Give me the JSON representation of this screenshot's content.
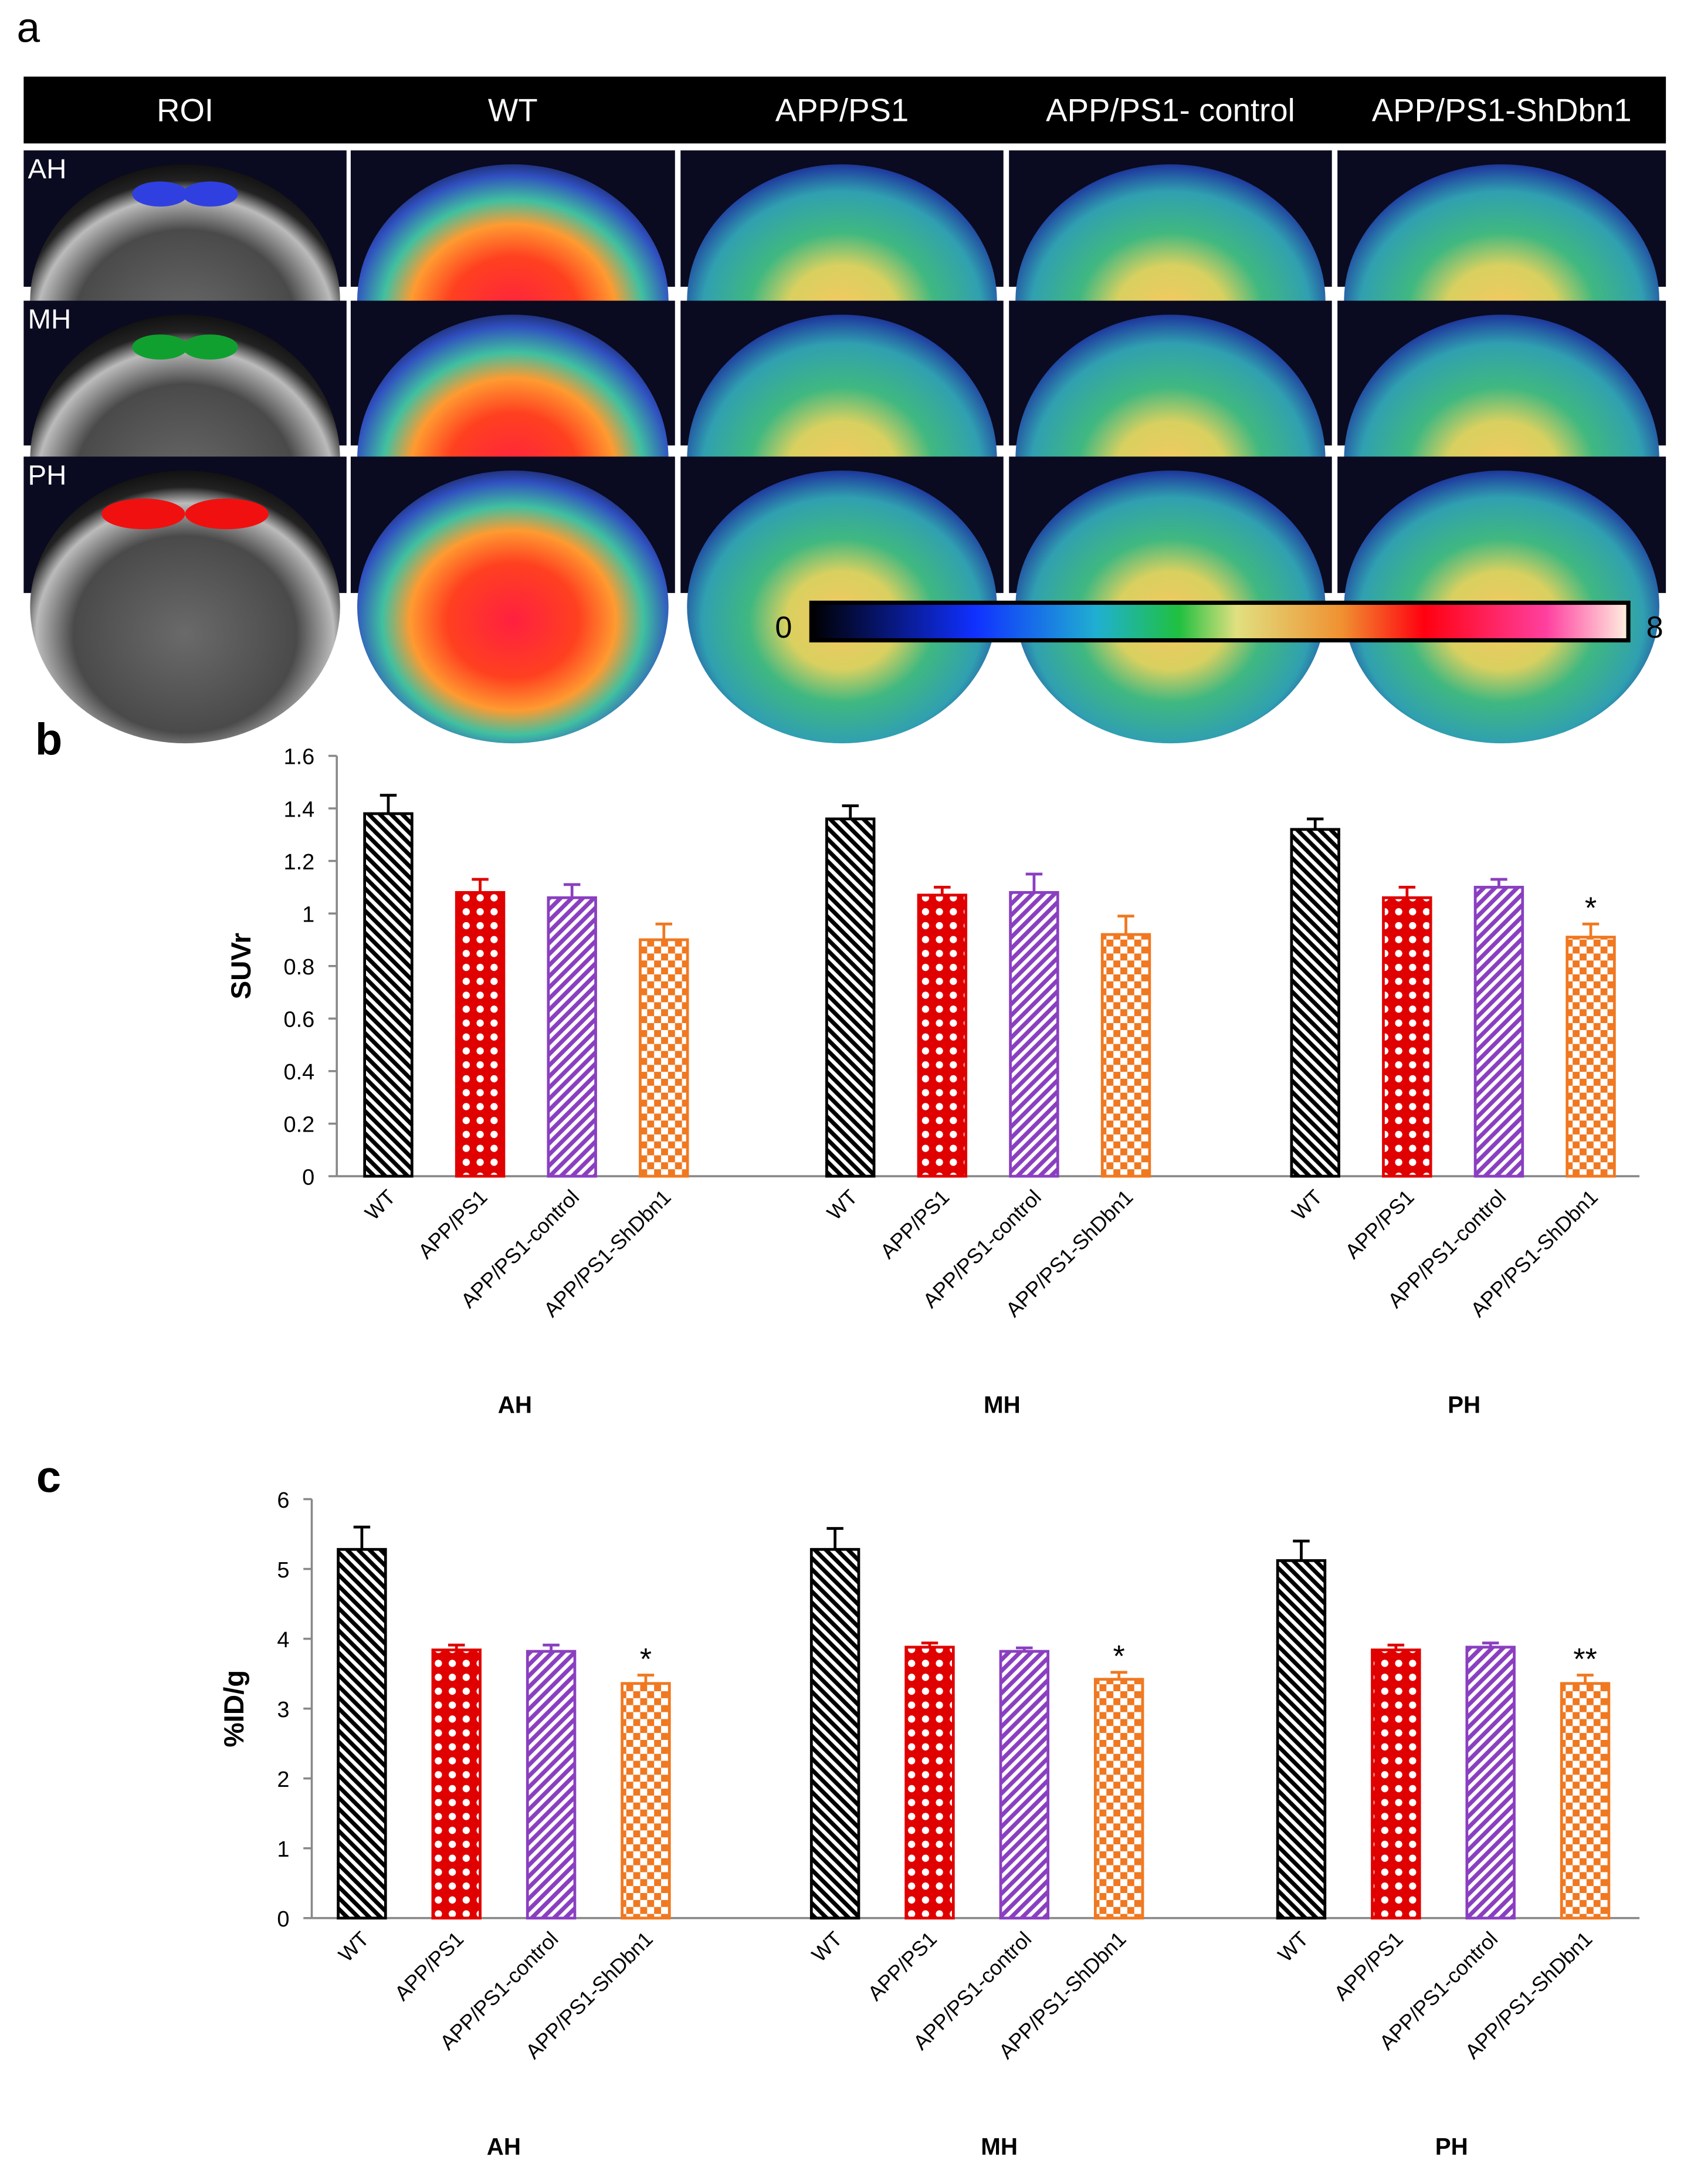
{
  "image_panel": {
    "label": "a",
    "columns": [
      "ROI",
      "WT",
      "APP/PS1",
      "APP/PS1- control",
      "APP/PS1-ShDbn1"
    ],
    "rows": [
      "AH",
      "MH",
      "PH"
    ],
    "colorbar": {
      "min": 0,
      "max": 8
    }
  },
  "chart_data": [
    {
      "type": "bar",
      "panel_label": "b",
      "ylabel": "SUVr",
      "categories": [
        "AH",
        "MH",
        "PH"
      ],
      "ylim": [
        0,
        1.6
      ],
      "yticks": [
        0,
        0.2,
        0.4,
        0.6,
        0.8,
        1,
        1.2,
        1.4,
        1.6
      ],
      "series": [
        {
          "name": "WT",
          "color": "#000000",
          "pattern": "diagonal-back",
          "values": [
            1.38,
            1.36,
            1.32
          ],
          "errors": [
            0.07,
            0.05,
            0.04
          ],
          "significance": [
            null,
            null,
            null
          ]
        },
        {
          "name": "APP/PS1",
          "color": "#e00000",
          "pattern": "dots",
          "values": [
            1.08,
            1.07,
            1.06
          ],
          "errors": [
            0.05,
            0.03,
            0.04
          ],
          "significance": [
            null,
            null,
            null
          ]
        },
        {
          "name": "APP/PS1-control",
          "color": "#8a3fc0",
          "pattern": "diagonal-forward",
          "values": [
            1.06,
            1.08,
            1.1
          ],
          "errors": [
            0.05,
            0.07,
            0.03
          ],
          "significance": [
            null,
            null,
            null
          ]
        },
        {
          "name": "APP/PS1-ShDbn1",
          "color": "#f07820",
          "pattern": "checker",
          "values": [
            0.9,
            0.92,
            0.91
          ],
          "errors": [
            0.06,
            0.07,
            0.05
          ],
          "significance": [
            null,
            null,
            "*"
          ]
        }
      ]
    },
    {
      "type": "bar",
      "panel_label": "c",
      "ylabel": "%ID/g",
      "categories": [
        "AH",
        "MH",
        "PH"
      ],
      "ylim": [
        0,
        6
      ],
      "yticks": [
        0,
        1,
        2,
        3,
        4,
        5,
        6
      ],
      "series": [
        {
          "name": "WT",
          "color": "#000000",
          "pattern": "diagonal-back",
          "values": [
            5.28,
            5.28,
            5.12
          ],
          "errors": [
            0.32,
            0.3,
            0.28
          ],
          "significance": [
            null,
            null,
            null
          ]
        },
        {
          "name": "APP/PS1",
          "color": "#e00000",
          "pattern": "dots",
          "values": [
            3.84,
            3.88,
            3.84
          ],
          "errors": [
            0.07,
            0.06,
            0.07
          ],
          "significance": [
            null,
            null,
            null
          ]
        },
        {
          "name": "APP/PS1-control",
          "color": "#8a3fc0",
          "pattern": "diagonal-forward",
          "values": [
            3.82,
            3.82,
            3.88
          ],
          "errors": [
            0.09,
            0.05,
            0.06
          ],
          "significance": [
            null,
            null,
            null
          ]
        },
        {
          "name": "APP/PS1-ShDbn1",
          "color": "#f07820",
          "pattern": "checker",
          "values": [
            3.36,
            3.42,
            3.36
          ],
          "errors": [
            0.12,
            0.1,
            0.12
          ],
          "significance": [
            "*",
            "*",
            "**"
          ]
        }
      ]
    }
  ]
}
